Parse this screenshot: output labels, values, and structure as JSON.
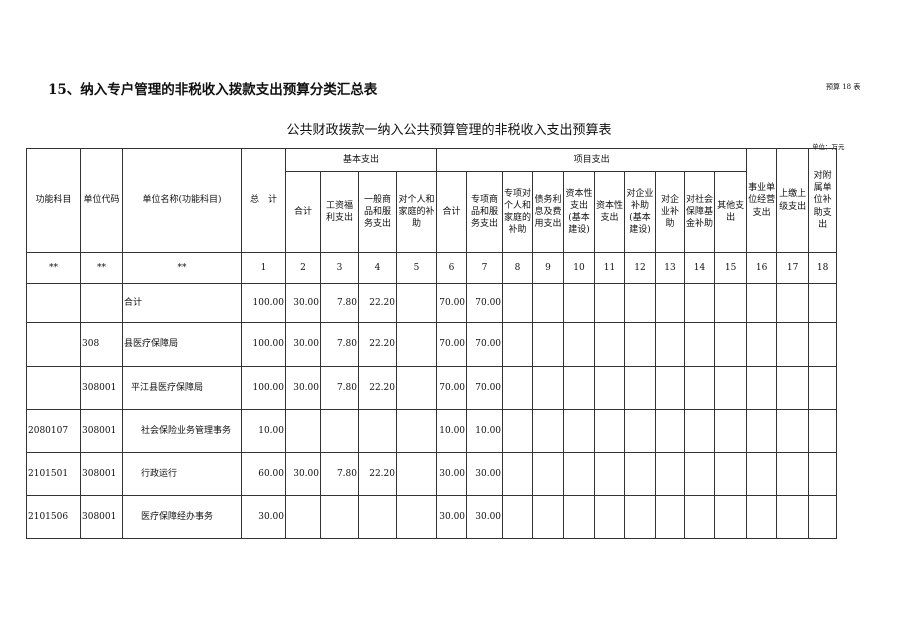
{
  "title": "15、纳入专户管理的非税收入拨款支出预算分类汇总表",
  "tag": "预算 18 表",
  "subtitle": "公共财政拨款一纳入公共预算管理的非税收入支出预算表",
  "unit": "单位：万元",
  "headers": {
    "func": "功能科目",
    "code": "单位代码",
    "name": "单位名称(功能科目)",
    "total": "总　计",
    "basic": "基本支出",
    "project": "项目支出",
    "basic_cols": [
      "合计",
      "工资福利支出",
      "一般商品和服务支出",
      "对个人和家庭的补助"
    ],
    "project_cols": [
      "合计",
      "专项商品和服务支出",
      "专项对个人和家庭的补助",
      "债务利息及费用支出",
      "资本性支出(基本建设)",
      "资本性支出",
      "对企业补助(基本建设)",
      "对企业补助",
      "对社会保障基金补助",
      "其他支出"
    ],
    "tail_cols": [
      "事业单位经营支出",
      "上缴上级支出",
      "对附属单位补助支出"
    ],
    "index": [
      "**",
      "**",
      "**",
      "1",
      "2",
      "3",
      "4",
      "5",
      "6",
      "7",
      "8",
      "9",
      "10",
      "11",
      "12",
      "13",
      "14",
      "15",
      "16",
      "17",
      "18"
    ]
  },
  "rows": [
    {
      "func": "",
      "code": "",
      "name": "合计",
      "indent": 0,
      "total": "100.00",
      "b_total": "30.00",
      "b_wage": "7.80",
      "b_goods": "22.20",
      "p_total": "70.00",
      "p_goods": "70.00"
    },
    {
      "func": "",
      "code": "308",
      "name": "县医疗保障局",
      "indent": 0,
      "total": "100.00",
      "b_total": "30.00",
      "b_wage": "7.80",
      "b_goods": "22.20",
      "p_total": "70.00",
      "p_goods": "70.00"
    },
    {
      "func": "",
      "code": "308001",
      "name": "平江县医疗保障局",
      "indent": 1,
      "total": "100.00",
      "b_total": "30.00",
      "b_wage": "7.80",
      "b_goods": "22.20",
      "p_total": "70.00",
      "p_goods": "70.00"
    },
    {
      "func": "2080107",
      "code": "308001",
      "name": "社会保险业务管理事务",
      "indent": 2,
      "total": "10.00",
      "b_total": "",
      "b_wage": "",
      "b_goods": "",
      "p_total": "10.00",
      "p_goods": "10.00"
    },
    {
      "func": "2101501",
      "code": "308001",
      "name": "行政运行",
      "indent": 2,
      "total": "60.00",
      "b_total": "30.00",
      "b_wage": "7.80",
      "b_goods": "22.20",
      "p_total": "30.00",
      "p_goods": "30.00"
    },
    {
      "func": "2101506",
      "code": "308001",
      "name": "医疗保障经办事务",
      "indent": 2,
      "total": "30.00",
      "b_total": "",
      "b_wage": "",
      "b_goods": "",
      "p_total": "30.00",
      "p_goods": "30.00"
    }
  ]
}
